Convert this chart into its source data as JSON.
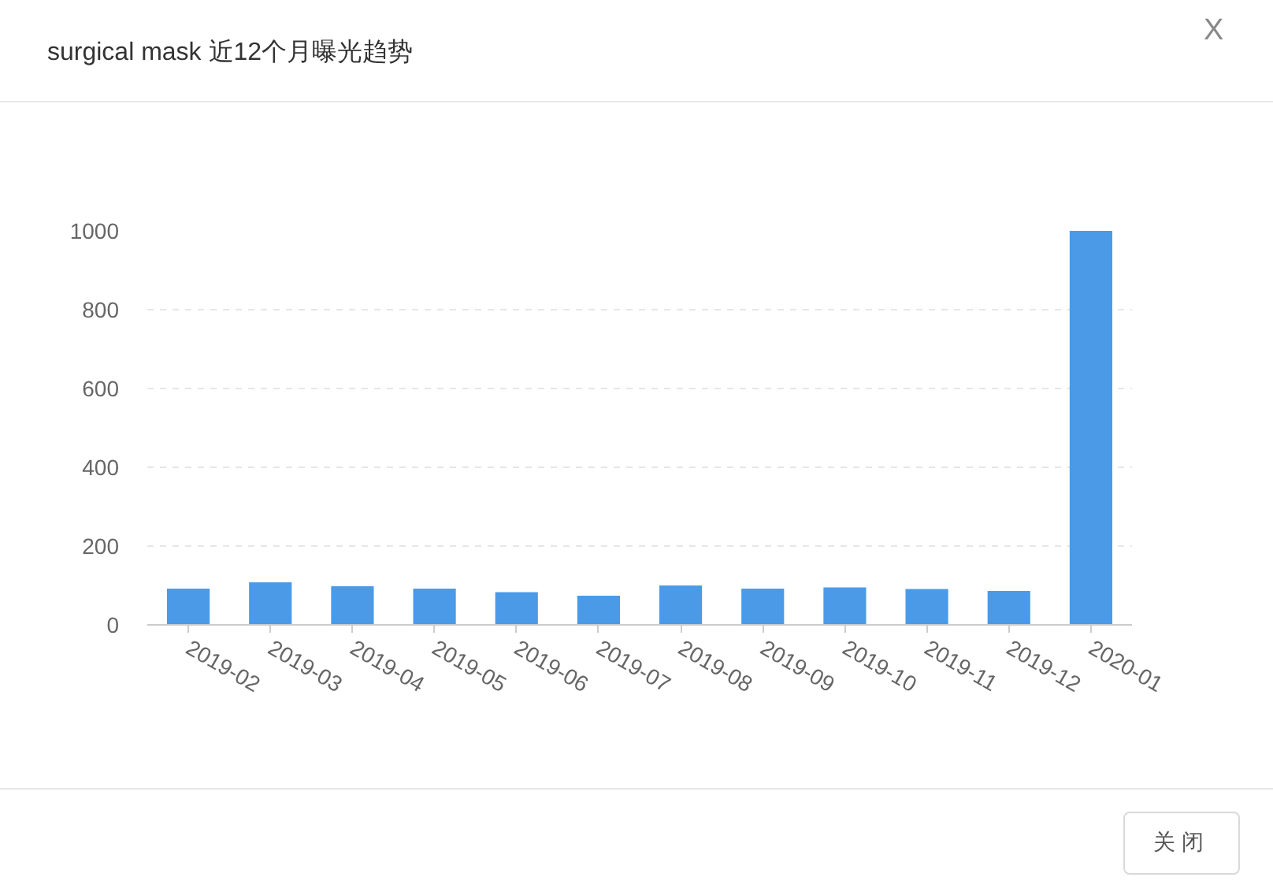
{
  "chart_data": {
    "type": "bar",
    "title": "surgical mask 近12个月曝光趋势",
    "categories": [
      "2019-02",
      "2019-03",
      "2019-04",
      "2019-05",
      "2019-06",
      "2019-07",
      "2019-08",
      "2019-09",
      "2019-10",
      "2019-11",
      "2019-12",
      "2020-01"
    ],
    "values": [
      92,
      108,
      98,
      92,
      83,
      74,
      100,
      92,
      95,
      91,
      86,
      1000
    ],
    "color": "#4a9ae8",
    "ylim": [
      0,
      1000
    ],
    "yticks": [
      0,
      200,
      400,
      600,
      800,
      1000
    ],
    "grid": "y",
    "annotations": [
      "X",
      "关闭"
    ]
  }
}
